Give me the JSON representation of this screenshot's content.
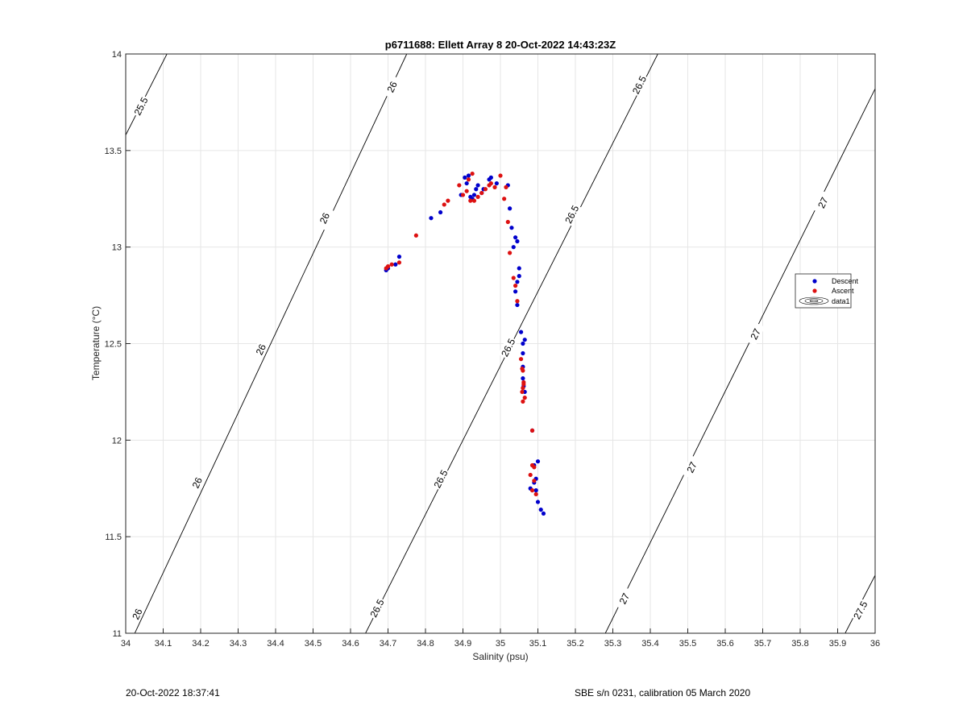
{
  "footer": {
    "timestamp": "20-Oct-2022 18:37:41",
    "sensor": "SBE s/n 0231, calibration 05 March 2020"
  },
  "colors": {
    "descent": "#0000cc",
    "ascent": "#dd1111",
    "contour": "#000000",
    "grid": "#e6e6e6"
  },
  "chart_data": {
    "type": "scatter",
    "title": "p6711688: Ellett Array 8 20-Oct-2022 14:43:23Z",
    "xlabel": "Salinity (psu)",
    "ylabel": "Temperature (°C)",
    "xlim": [
      34,
      36
    ],
    "ylim": [
      11,
      14
    ],
    "grid": true,
    "legend_position": "right",
    "xticks": [
      "34",
      "34.1",
      "34.2",
      "34.3",
      "34.4",
      "34.5",
      "34.6",
      "34.7",
      "34.8",
      "34.9",
      "35",
      "35.1",
      "35.2",
      "35.3",
      "35.4",
      "35.5",
      "35.6",
      "35.7",
      "35.8",
      "35.9",
      "36"
    ],
    "yticks": [
      "11",
      "11.5",
      "12",
      "12.5",
      "13",
      "13.5",
      "14"
    ],
    "legend": [
      "Descent",
      "Ascent",
      "data1"
    ],
    "density_contours": [
      {
        "label": "25.5",
        "points": [
          [
            34.0,
            13.58
          ],
          [
            34.11,
            14.0
          ]
        ],
        "labels_at": [
          [
            34.04,
            13.73
          ]
        ]
      },
      {
        "label": "26",
        "points": [
          [
            34.0,
            10.9
          ],
          [
            34.75,
            14.0
          ]
        ],
        "labels_at": [
          [
            34.03,
            11.1
          ],
          [
            34.19,
            11.78
          ],
          [
            34.36,
            12.47
          ],
          [
            34.53,
            13.15
          ],
          [
            34.71,
            13.83
          ]
        ]
      },
      {
        "label": "26.5",
        "points": [
          [
            34.64,
            11.0
          ],
          [
            35.42,
            14.0
          ]
        ],
        "labels_at": [
          [
            34.67,
            11.13
          ],
          [
            34.84,
            11.8
          ],
          [
            35.02,
            12.48
          ],
          [
            35.19,
            13.17
          ],
          [
            35.37,
            13.84
          ]
        ]
      },
      {
        "label": "27",
        "points": [
          [
            35.28,
            11.0
          ],
          [
            36.0,
            13.82
          ]
        ],
        "labels_at": [
          [
            35.33,
            11.18
          ],
          [
            35.51,
            11.86
          ],
          [
            35.68,
            12.55
          ],
          [
            35.86,
            13.23
          ]
        ]
      },
      {
        "label": "27.5",
        "points": [
          [
            35.92,
            11.0
          ],
          [
            36.0,
            11.3
          ]
        ],
        "labels_at": [
          [
            35.96,
            11.12
          ]
        ]
      }
    ],
    "series": [
      {
        "name": "Descent",
        "x": [
          34.695,
          34.7,
          34.72,
          34.73,
          34.815,
          34.84,
          34.895,
          34.905,
          34.91,
          34.915,
          34.92,
          34.925,
          34.93,
          34.935,
          34.94,
          34.95,
          34.955,
          34.97,
          34.975,
          34.99,
          35.02,
          35.025,
          35.03,
          35.035,
          35.04,
          35.045,
          35.05,
          35.05,
          35.045,
          35.04,
          35.045,
          35.055,
          35.06,
          35.065,
          35.06,
          35.06,
          35.06,
          35.062,
          35.065,
          35.085,
          35.09,
          35.1,
          35.095,
          35.09,
          35.08,
          35.095,
          35.1,
          35.108,
          35.115
        ],
        "y": [
          12.88,
          12.89,
          12.91,
          12.95,
          13.15,
          13.18,
          13.27,
          13.36,
          13.33,
          13.37,
          13.26,
          13.25,
          13.27,
          13.3,
          13.32,
          13.28,
          13.3,
          13.35,
          13.36,
          13.33,
          13.32,
          13.2,
          13.1,
          13.0,
          13.05,
          13.03,
          12.89,
          12.85,
          12.82,
          12.77,
          12.7,
          12.56,
          12.5,
          12.52,
          12.45,
          12.38,
          12.32,
          12.28,
          12.25,
          12.05,
          11.87,
          11.89,
          11.8,
          11.78,
          11.75,
          11.74,
          11.68,
          11.64,
          11.62
        ]
      },
      {
        "name": "Ascent",
        "x": [
          34.695,
          34.7,
          34.71,
          34.73,
          34.775,
          34.85,
          34.86,
          34.89,
          34.9,
          34.91,
          34.915,
          34.92,
          34.925,
          34.93,
          34.94,
          34.95,
          34.96,
          34.97,
          34.975,
          34.985,
          35.0,
          35.01,
          35.015,
          35.02,
          35.025,
          35.035,
          35.04,
          35.045,
          35.055,
          35.06,
          35.062,
          35.06,
          35.058,
          35.065,
          35.06,
          35.062,
          35.058,
          35.085,
          35.09,
          35.085,
          35.08,
          35.09,
          35.085,
          35.095
        ],
        "y": [
          12.89,
          12.9,
          12.91,
          12.92,
          13.06,
          13.22,
          13.24,
          13.32,
          13.27,
          13.29,
          13.35,
          13.24,
          13.38,
          13.24,
          13.26,
          13.28,
          13.3,
          13.32,
          13.33,
          13.31,
          13.37,
          13.25,
          13.31,
          13.13,
          12.97,
          12.84,
          12.8,
          12.72,
          12.42,
          12.36,
          12.3,
          12.27,
          12.25,
          12.22,
          12.2,
          12.29,
          12.37,
          12.05,
          11.86,
          11.87,
          11.82,
          11.79,
          11.74,
          11.72
        ]
      }
    ]
  }
}
